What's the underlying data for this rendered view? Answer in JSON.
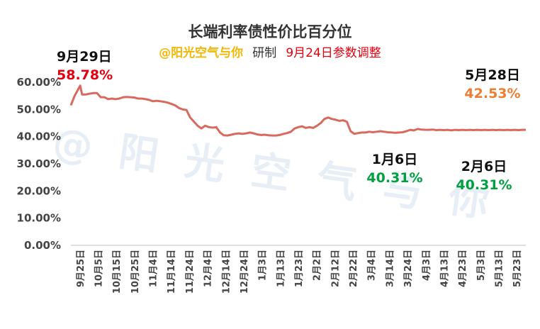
{
  "header": {
    "title": "长端利率债性价比百分位",
    "handle": "@阳光空气与你",
    "mid": "研制",
    "note": "9月24日参数调整"
  },
  "watermark": "@阳光空气与你",
  "colors": {
    "line": "#D9695F",
    "red": "#E3000F",
    "green": "#00A040",
    "orange": "#ED7D31",
    "handle": "#F2B705"
  },
  "chart_data": {
    "type": "line",
    "title": "长端利率债性价比百分位",
    "ylim": [
      0,
      60
    ],
    "yticks": [
      "0.00%",
      "10.00%",
      "20.00%",
      "30.00%",
      "40.00%",
      "50.00%",
      "60.00%"
    ],
    "xticks": [
      "9月25日",
      "10月5日",
      "10月15日",
      "10月25日",
      "11月4日",
      "11月14日",
      "11月24日",
      "12月4日",
      "12月14日",
      "12月24日",
      "1月3日",
      "1月13日",
      "1月23日",
      "2月2日",
      "2月12日",
      "2月22日",
      "3月4日",
      "3月14日",
      "3月24日",
      "4月3日",
      "4月13日",
      "4月23日",
      "5月3日",
      "5月13日",
      "5月23日"
    ],
    "series": [
      {
        "x": [
          0,
          2,
          4,
          5,
          6,
          8,
          10,
          12,
          14,
          16,
          18,
          20,
          22,
          24,
          26,
          28,
          30,
          32,
          34,
          36,
          38,
          40,
          42,
          44,
          46,
          48,
          50,
          52,
          54,
          56,
          58,
          60,
          62,
          64,
          66,
          68,
          70,
          72,
          74,
          76,
          78,
          80,
          82,
          84,
          86,
          88,
          90,
          92,
          94,
          96,
          98,
          100,
          102,
          104,
          106,
          108,
          110,
          112,
          114,
          116,
          118,
          120,
          122,
          124,
          126,
          128,
          130,
          132,
          134,
          136,
          138,
          140,
          142,
          144,
          146,
          148,
          150,
          152,
          154,
          156,
          158,
          160,
          162,
          164,
          166,
          168,
          170,
          172,
          174,
          176,
          178,
          180,
          182,
          184,
          186,
          188,
          190,
          192,
          194,
          196,
          198,
          200,
          202,
          204,
          206,
          208,
          210,
          212,
          214,
          216,
          218,
          220,
          222,
          224,
          226,
          228,
          230,
          232,
          234,
          236,
          238,
          240,
          242,
          244
        ],
        "values": [
          51.5,
          55,
          57.5,
          58.78,
          55.5,
          55.5,
          55.8,
          56,
          56,
          54.5,
          54.5,
          53.8,
          54,
          53.8,
          54,
          54.5,
          54.6,
          54.5,
          54.4,
          54,
          54,
          53.8,
          53.5,
          53,
          53.2,
          53,
          52.8,
          52.5,
          52,
          51.5,
          50.5,
          50,
          49.8,
          47,
          45.5,
          44,
          43,
          44,
          43.5,
          43.3,
          43.5,
          41.5,
          40.5,
          40.4,
          40.7,
          41,
          41.2,
          41,
          41.2,
          41.5,
          41.2,
          40.8,
          40.6,
          40.7,
          40.5,
          40.4,
          40.4,
          40.6,
          41,
          41.3,
          41.8,
          43,
          43.5,
          43.8,
          43.2,
          43.5,
          43.2,
          44,
          45,
          46.5,
          47,
          46.5,
          46.2,
          45.8,
          46,
          45.5,
          42,
          41,
          41.3,
          41.5,
          41.5,
          41.8,
          41.6,
          41.8,
          42,
          41.8,
          41.6,
          41.5,
          41.4,
          41.5,
          41.6,
          42,
          42.5,
          42.3,
          42.8,
          42.6,
          42.53,
          42.5,
          42.6,
          42.4,
          42.5,
          42.4,
          42.5,
          42.3,
          42.5,
          42.4,
          42.5,
          42.4,
          42.5,
          42.4,
          42.5,
          42.4,
          42.5,
          42.4,
          42.5,
          42.4,
          42.5,
          42.4,
          42.5,
          42.4,
          42.5,
          42.4,
          42.5,
          42.5
        ]
      }
    ],
    "x_range": [
      0,
      244
    ],
    "annotations": [
      {
        "date": "9月29日",
        "value": "58.78%",
        "color": "red"
      },
      {
        "date": "5月28日",
        "value": "42.53%",
        "color": "orange"
      },
      {
        "date": "1月6日",
        "value": "40.31%",
        "color": "green"
      },
      {
        "date": "2月6日",
        "value": "40.31%",
        "color": "green"
      }
    ]
  }
}
